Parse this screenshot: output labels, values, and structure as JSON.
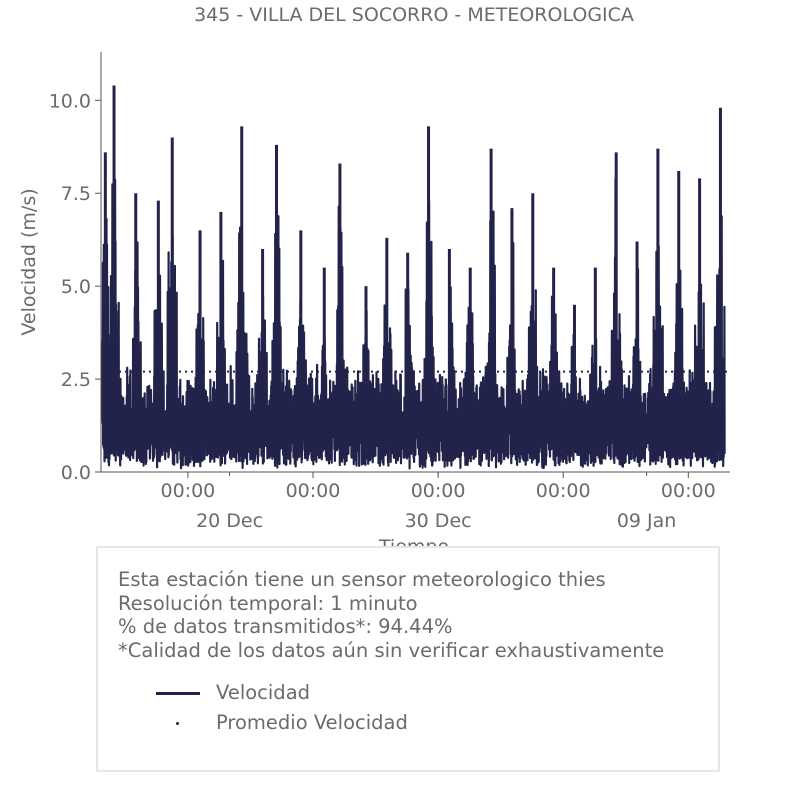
{
  "chart_data": {
    "type": "line",
    "title": "345 - VILLA DEL SOCORRO - METEOROLOGICA",
    "xlabel": "Tiempo",
    "ylabel": "Velocidad (m/s)",
    "ylim": [
      0,
      11.3
    ],
    "xlim": [
      "2024-12-13 20:00",
      "2025-01-13 00:00"
    ],
    "yticks": [
      "0.0",
      "2.5",
      "5.0",
      "7.5",
      "10.0"
    ],
    "ytick_values": [
      0,
      2.5,
      5,
      7.5,
      10
    ],
    "xticks": [
      {
        "x": "2024-12-18 00:00",
        "label": "00:00"
      },
      {
        "x": "2024-12-24 00:00",
        "label": "00:00"
      },
      {
        "x": "2024-12-30 00:00",
        "label": "00:00"
      },
      {
        "x": "2025-01-05 00:00",
        "label": "00:00"
      },
      {
        "x": "2025-01-11 00:00",
        "label": "00:00"
      }
    ],
    "xminor_ticks": [
      {
        "x": "2024-12-20 00:00",
        "label": "20 Dec"
      },
      {
        "x": "2024-12-30 00:00",
        "label": "30 Dec"
      },
      {
        "x": "2025-01-09 00:00",
        "label": "09 Jan"
      }
    ],
    "series": [
      {
        "name": "Velocidad",
        "color": "#22234a",
        "style": "solid",
        "daily_peaks": [
          {
            "x": "2024-12-14 01:00",
            "y": 8.6
          },
          {
            "x": "2024-12-14 11:00",
            "y": 10.4
          },
          {
            "x": "2024-12-15 12:00",
            "y": 7.5
          },
          {
            "x": "2024-12-16 14:00",
            "y": 7.3
          },
          {
            "x": "2024-12-17 06:00",
            "y": 9.0
          },
          {
            "x": "2024-12-18 14:00",
            "y": 6.5
          },
          {
            "x": "2024-12-19 14:00",
            "y": 7.0
          },
          {
            "x": "2024-12-20 14:00",
            "y": 9.3
          },
          {
            "x": "2024-12-21 14:00",
            "y": 6.0
          },
          {
            "x": "2024-12-22 06:00",
            "y": 8.8
          },
          {
            "x": "2024-12-23 10:00",
            "y": 6.5
          },
          {
            "x": "2024-12-24 13:00",
            "y": 5.5
          },
          {
            "x": "2024-12-25 07:00",
            "y": 8.3
          },
          {
            "x": "2024-12-26 13:00",
            "y": 5.0
          },
          {
            "x": "2024-12-27 13:00",
            "y": 6.3
          },
          {
            "x": "2024-12-28 13:00",
            "y": 5.9
          },
          {
            "x": "2024-12-29 13:00",
            "y": 9.3
          },
          {
            "x": "2024-12-30 13:00",
            "y": 6.0
          },
          {
            "x": "2024-12-31 13:00",
            "y": 5.5
          },
          {
            "x": "2025-01-01 13:00",
            "y": 8.7
          },
          {
            "x": "2025-01-02 13:00",
            "y": 7.1
          },
          {
            "x": "2025-01-03 13:00",
            "y": 7.5
          },
          {
            "x": "2025-01-04 13:00",
            "y": 5.5
          },
          {
            "x": "2025-01-05 13:00",
            "y": 4.5
          },
          {
            "x": "2025-01-06 13:00",
            "y": 5.5
          },
          {
            "x": "2025-01-07 13:00",
            "y": 8.6
          },
          {
            "x": "2025-01-08 13:00",
            "y": 6.2
          },
          {
            "x": "2025-01-09 13:00",
            "y": 8.7
          },
          {
            "x": "2025-01-10 13:00",
            "y": 8.1
          },
          {
            "x": "2025-01-11 13:00",
            "y": 7.9
          },
          {
            "x": "2025-01-12 13:00",
            "y": 9.8
          }
        ]
      },
      {
        "name": "Promedio Velocidad",
        "color": "#22234a",
        "style": "dotted",
        "y": 2.7
      }
    ],
    "grid": false,
    "legend_position": "bottom"
  },
  "info": {
    "line1": "Esta estación tiene un sensor meteorologico thies",
    "line2": "Resolución temporal: 1 minuto",
    "line3": "% de datos transmitidos*: 94.44%",
    "line4": "*Calidad de los datos aún sin verificar exhaustivamente"
  },
  "legend": {
    "item1": "Velocidad",
    "item2": "Promedio Velocidad"
  }
}
